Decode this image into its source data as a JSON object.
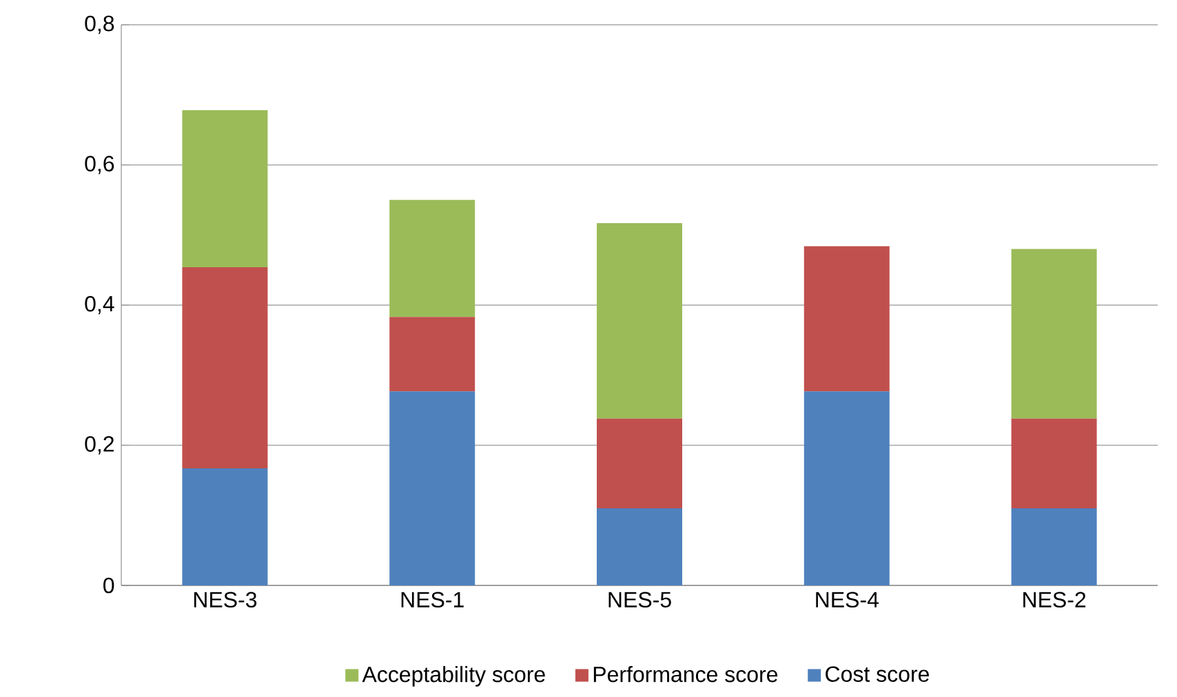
{
  "chart_data": {
    "type": "bar",
    "stacked": true,
    "categories": [
      "NES-3",
      "NES-1",
      "NES-5",
      "NES-4",
      "NES-2"
    ],
    "series": [
      {
        "name": "Cost score",
        "color": "#4f81bd",
        "values": [
          0.167,
          0.277,
          0.11,
          0.277,
          0.11
        ]
      },
      {
        "name": "Performance score",
        "color": "#c0504d",
        "values": [
          0.287,
          0.106,
          0.128,
          0.207,
          0.128
        ]
      },
      {
        "name": "Acceptability score",
        "color": "#9bbb59",
        "values": [
          0.224,
          0.167,
          0.279,
          0,
          0.242
        ]
      }
    ],
    "ylim": [
      0,
      0.8
    ],
    "yticks": [
      0,
      {
        "value": 0.2,
        "label": "0,2"
      },
      {
        "value": 0.4,
        "label": "0,4"
      },
      {
        "value": 0.6,
        "label": "0,6"
      },
      {
        "value": 0.8,
        "label": "0,8"
      }
    ],
    "grid": "y",
    "legend": "bottom"
  }
}
